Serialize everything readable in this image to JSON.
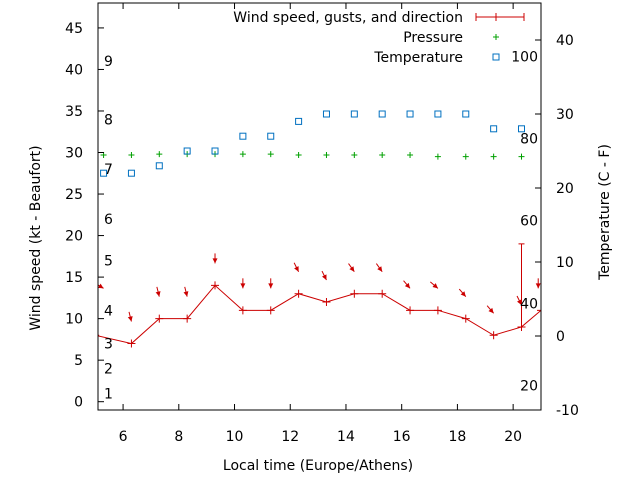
{
  "chart_data": {
    "type": "line",
    "xlabel": "Local time (Europe/Athens)",
    "ylabel": "Wind speed (kt - Beaufort)",
    "y2label": "Temperature (C - F)",
    "xlim": [
      5.1,
      21.0
    ],
    "ylim": [
      -1,
      48
    ],
    "y2lim": [
      -10,
      45
    ],
    "xticks": [
      6,
      8,
      10,
      12,
      14,
      16,
      18,
      20
    ],
    "yticks": [
      0,
      5,
      10,
      15,
      20,
      25,
      30,
      35,
      40,
      45
    ],
    "y2ticks": [
      -10,
      0,
      10,
      20,
      30,
      40
    ],
    "beaufort_labels": [
      {
        "label": "1",
        "y": 1
      },
      {
        "label": "2",
        "y": 4
      },
      {
        "label": "3",
        "y": 7
      },
      {
        "label": "4",
        "y": 11
      },
      {
        "label": "5",
        "y": 17
      },
      {
        "label": "6",
        "y": 22
      },
      {
        "label": "7",
        "y": 28
      },
      {
        "label": "8",
        "y": 34
      },
      {
        "label": "9",
        "y": 41
      }
    ],
    "fahrenheit_labels": [
      {
        "label": "20",
        "y2": -6.7
      },
      {
        "label": "40",
        "y2": 4.4
      },
      {
        "label": "60",
        "y2": 15.6
      },
      {
        "label": "80",
        "y2": 26.7
      },
      {
        "label": "100",
        "y2": 37.8
      }
    ],
    "legend_placement": "top-right",
    "grid": false,
    "series": [
      {
        "name": "Wind speed, gusts, and direction",
        "color": "#cc0000",
        "x": [
          5.0,
          6.3,
          7.3,
          8.3,
          9.3,
          10.3,
          11.3,
          12.3,
          13.3,
          14.3,
          15.3,
          16.3,
          17.3,
          18.3,
          19.3,
          20.3,
          21.0
        ],
        "values": [
          8,
          7,
          10,
          10,
          14,
          11,
          11,
          13,
          12,
          13,
          13,
          11,
          11,
          10,
          8,
          9,
          11
        ],
        "gusts": [
          {
            "x": 20.3,
            "value": 19
          }
        ],
        "direction_arrows": [
          {
            "x": 5.3,
            "dx": 10,
            "dy": -6
          },
          {
            "x": 6.3,
            "dx": 2,
            "dy": -8
          },
          {
            "x": 7.3,
            "dx": 2,
            "dy": -8
          },
          {
            "x": 8.3,
            "dx": 2,
            "dy": -8
          },
          {
            "x": 9.3,
            "dx": 0,
            "dy": -10
          },
          {
            "x": 10.3,
            "dx": 0,
            "dy": -10
          },
          {
            "x": 11.3,
            "dx": 0,
            "dy": -10
          },
          {
            "x": 12.3,
            "dx": 4,
            "dy": -8
          },
          {
            "x": 13.3,
            "dx": 4,
            "dy": -8
          },
          {
            "x": 14.3,
            "dx": 5,
            "dy": -7
          },
          {
            "x": 15.3,
            "dx": 5,
            "dy": -7
          },
          {
            "x": 16.3,
            "dx": 6,
            "dy": -7
          },
          {
            "x": 17.3,
            "dx": 7,
            "dy": -6
          },
          {
            "x": 18.3,
            "dx": 6,
            "dy": -7
          },
          {
            "x": 19.3,
            "dx": 6,
            "dy": -7
          },
          {
            "x": 20.3,
            "dx": 4,
            "dy": -8
          },
          {
            "x": 20.9,
            "dx": 0,
            "dy": -10
          }
        ]
      },
      {
        "name": "Pressure",
        "color": "#00a000",
        "x": [
          5.3,
          6.3,
          7.3,
          8.3,
          9.3,
          10.3,
          11.3,
          12.3,
          13.3,
          14.3,
          15.3,
          16.3,
          17.3,
          18.3,
          19.3,
          20.3
        ],
        "values": [
          29.7,
          29.7,
          29.8,
          29.8,
          29.8,
          29.8,
          29.8,
          29.7,
          29.7,
          29.7,
          29.7,
          29.7,
          29.5,
          29.5,
          29.5,
          29.5
        ]
      },
      {
        "name": "Temperature",
        "color": "#0070c0",
        "axis": "right",
        "x": [
          5.3,
          6.3,
          7.3,
          8.3,
          9.3,
          10.3,
          11.3,
          12.3,
          13.3,
          14.3,
          15.3,
          16.3,
          17.3,
          18.3,
          19.3,
          20.3
        ],
        "values": [
          22,
          22,
          23,
          25,
          25,
          27,
          27,
          29,
          30,
          30,
          30,
          30,
          30,
          30,
          28,
          28
        ]
      }
    ]
  }
}
